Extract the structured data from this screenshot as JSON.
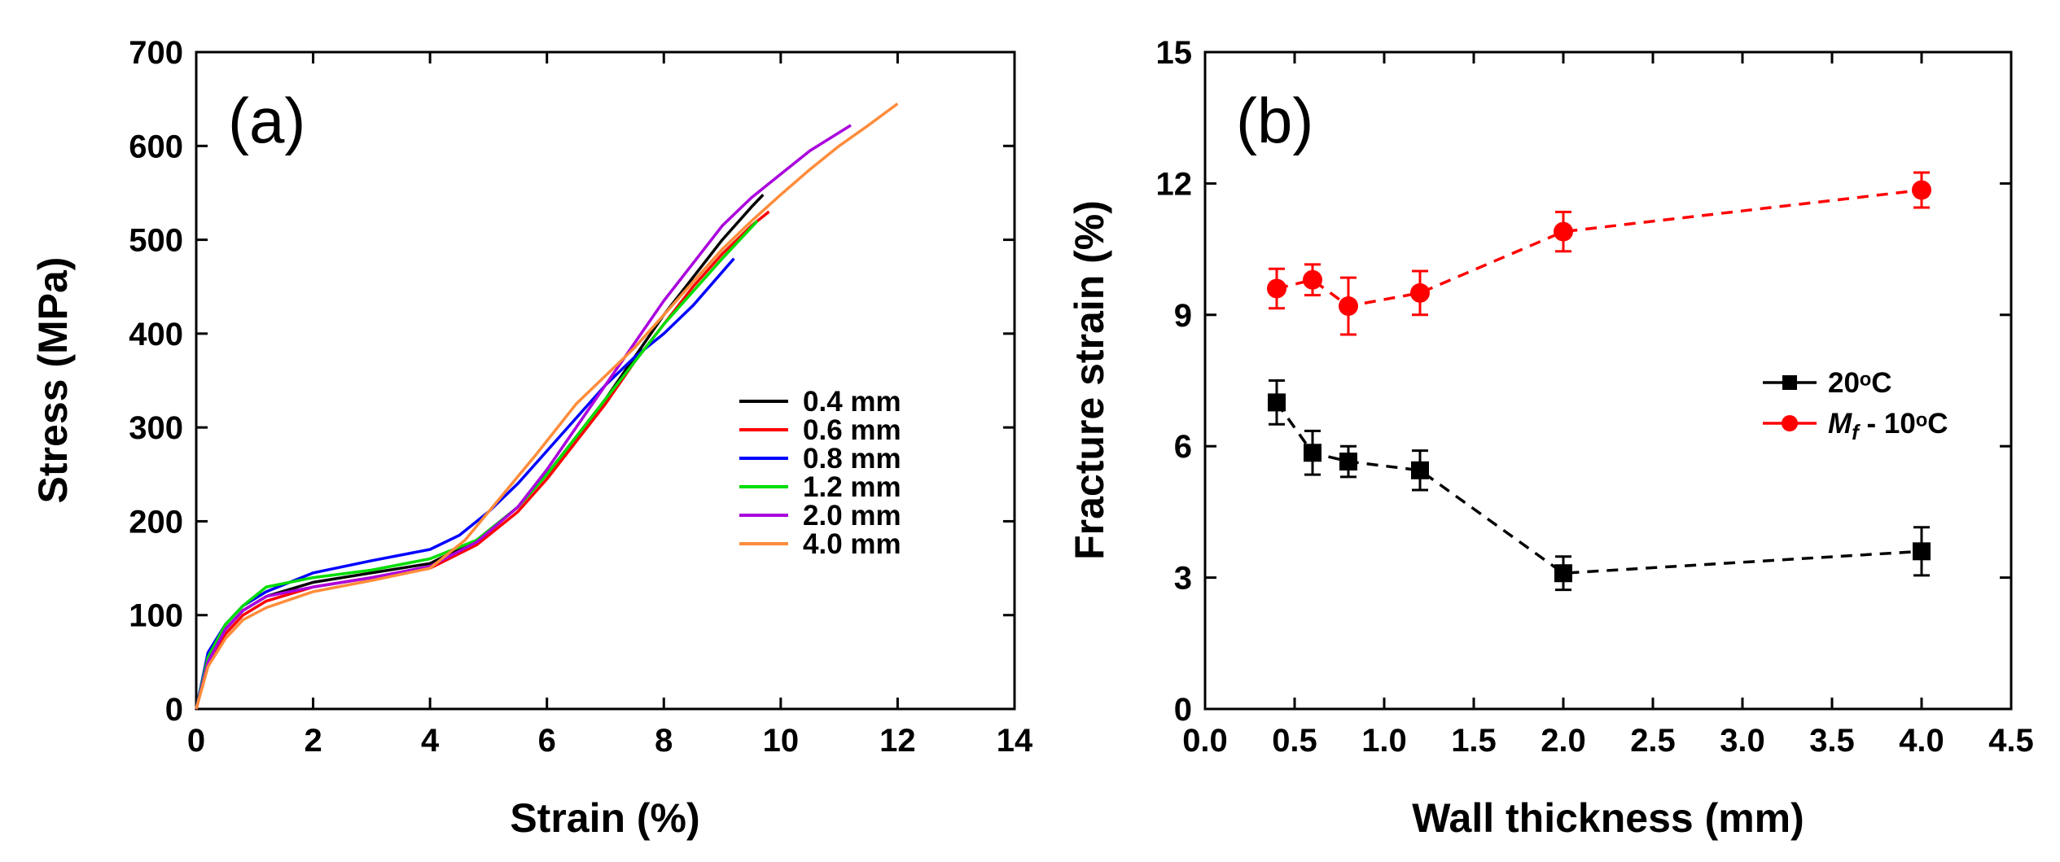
{
  "chart_data": [
    {
      "panel_label": "(a)",
      "type": "line",
      "xlabel": "Strain (%)",
      "ylabel": "Stress (MPa)",
      "xlim": [
        0,
        14
      ],
      "ylim": [
        0,
        700
      ],
      "xticks": [
        "0",
        "2",
        "4",
        "6",
        "8",
        "10",
        "12",
        "14"
      ],
      "yticks": [
        "0",
        "100",
        "200",
        "300",
        "400",
        "500",
        "600",
        "700"
      ],
      "legend_position": "center-right",
      "series": [
        {
          "name": "0.4 mm",
          "color": "#000000",
          "x": [
            0,
            0.2,
            0.5,
            0.8,
            1.2,
            2,
            3,
            4,
            4.8,
            5.5,
            6,
            6.5,
            7,
            7.5,
            8,
            8.5,
            9,
            9.5,
            9.7
          ],
          "y": [
            0,
            55,
            85,
            105,
            120,
            135,
            145,
            155,
            180,
            215,
            250,
            290,
            330,
            375,
            420,
            460,
            500,
            535,
            548
          ]
        },
        {
          "name": "0.6 mm",
          "color": "#ff0000",
          "x": [
            0,
            0.2,
            0.5,
            0.8,
            1.2,
            2,
            3,
            4,
            4.8,
            5.5,
            6,
            6.5,
            7,
            7.5,
            8,
            8.5,
            9,
            9.5,
            9.8
          ],
          "y": [
            0,
            50,
            80,
            100,
            115,
            130,
            140,
            150,
            175,
            210,
            245,
            285,
            325,
            370,
            410,
            450,
            485,
            515,
            530
          ]
        },
        {
          "name": "0.8 mm",
          "color": "#0000ff",
          "x": [
            0,
            0.2,
            0.5,
            0.8,
            1.2,
            2,
            3,
            4,
            4.5,
            5,
            5.5,
            6,
            6.5,
            7,
            7.5,
            8,
            8.5,
            9.2
          ],
          "y": [
            0,
            60,
            90,
            110,
            125,
            145,
            158,
            170,
            185,
            210,
            240,
            275,
            310,
            345,
            375,
            400,
            430,
            480
          ]
        },
        {
          "name": "1.2 mm",
          "color": "#00dd00",
          "x": [
            0,
            0.2,
            0.5,
            0.8,
            1.2,
            2,
            3,
            4,
            4.8,
            5.5,
            6,
            6.5,
            7,
            7.5,
            8,
            8.5,
            9,
            9.6
          ],
          "y": [
            0,
            55,
            90,
            110,
            130,
            140,
            148,
            160,
            180,
            215,
            250,
            290,
            330,
            370,
            410,
            445,
            480,
            520
          ]
        },
        {
          "name": "2.0 mm",
          "color": "#aa00dd",
          "x": [
            0,
            0.2,
            0.5,
            0.8,
            1.2,
            2,
            3,
            4,
            4.8,
            5.5,
            6,
            6.5,
            7,
            7.5,
            8,
            8.5,
            9,
            9.5,
            10,
            10.5,
            11.2
          ],
          "y": [
            0,
            50,
            85,
            105,
            120,
            130,
            140,
            152,
            178,
            215,
            255,
            300,
            345,
            390,
            435,
            475,
            515,
            545,
            570,
            595,
            622
          ]
        },
        {
          "name": "4.0 mm",
          "color": "#ff8c3a",
          "x": [
            0,
            0.2,
            0.5,
            0.8,
            1.2,
            2,
            3,
            4,
            4.6,
            5.2,
            5.8,
            6.5,
            7,
            7.5,
            8,
            8.5,
            9,
            9.5,
            10,
            10.5,
            11,
            11.5,
            12
          ],
          "y": [
            0,
            45,
            75,
            95,
            108,
            125,
            137,
            150,
            180,
            225,
            270,
            325,
            355,
            385,
            420,
            455,
            490,
            520,
            548,
            575,
            600,
            622,
            645
          ]
        }
      ]
    },
    {
      "panel_label": "(b)",
      "type": "scatter",
      "xlabel": "Wall thickness (mm)",
      "ylabel": "Fracture strain (%)",
      "xlim": [
        0,
        4.5
      ],
      "ylim": [
        0,
        15
      ],
      "xticks": [
        "0.0",
        "0.5",
        "1.0",
        "1.5",
        "2.0",
        "2.5",
        "3.0",
        "3.5",
        "4.0",
        "4.5"
      ],
      "yticks": [
        "0",
        "3",
        "6",
        "9",
        "12",
        "15"
      ],
      "legend_position": "center-right",
      "series": [
        {
          "name": "20°C",
          "legend_text": "20ᵒC",
          "marker": "square",
          "color": "#000000",
          "line": "dashed",
          "x": [
            0.4,
            0.6,
            0.8,
            1.2,
            2.0,
            4.0
          ],
          "y": [
            7.0,
            5.85,
            5.65,
            5.45,
            3.1,
            3.6
          ],
          "err": [
            0.5,
            0.5,
            0.35,
            0.45,
            0.38,
            0.55
          ]
        },
        {
          "name": "Mf - 10°C",
          "legend_text_italic": "M",
          "legend_text_sub": "f",
          "legend_text_rest": " - 10ᵒC",
          "marker": "circle",
          "color": "#ff0000",
          "line": "dashed",
          "x": [
            0.4,
            0.6,
            0.8,
            1.2,
            2.0,
            4.0
          ],
          "y": [
            9.6,
            9.8,
            9.2,
            9.5,
            10.9,
            11.85
          ],
          "err": [
            0.45,
            0.35,
            0.65,
            0.5,
            0.45,
            0.4
          ]
        }
      ]
    }
  ]
}
